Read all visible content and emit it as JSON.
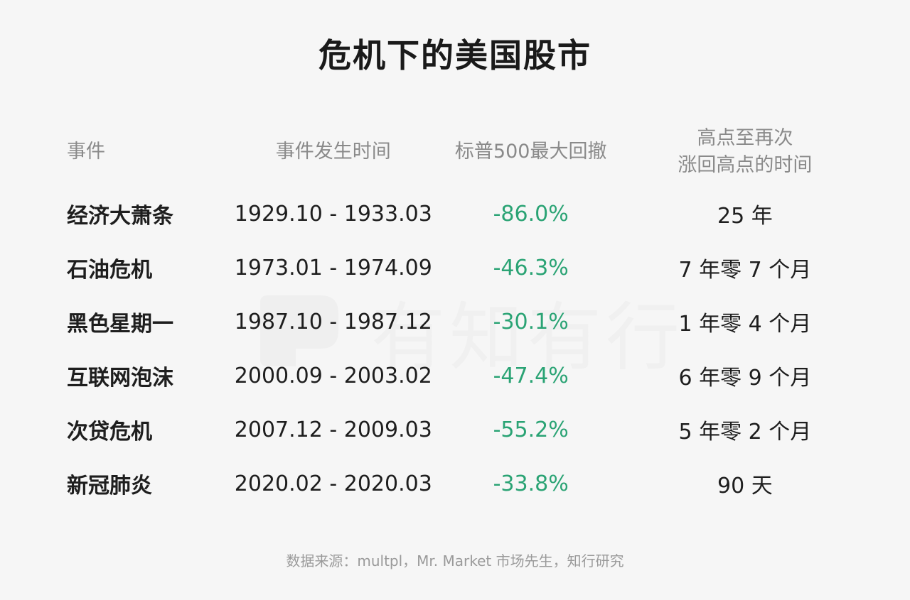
{
  "title": "危机下的美国股市",
  "watermark": "有知有行",
  "table": {
    "headers": {
      "event": "事件",
      "time": "事件发生时间",
      "drawdown": "标普500最大回撤",
      "recovery_line1": "高点至再次",
      "recovery_line2": "涨回高点的时间"
    },
    "rows": [
      {
        "event": "经济大萧条",
        "time": "1929.10 - 1933.03",
        "drawdown": "-86.0%",
        "recovery": "25 年"
      },
      {
        "event": "石油危机",
        "time": "1973.01 - 1974.09",
        "drawdown": "-46.3%",
        "recovery": "7 年零 7 个月"
      },
      {
        "event": "黑色星期一",
        "time": "1987.10 - 1987.12",
        "drawdown": "-30.1%",
        "recovery": "1 年零 4 个月"
      },
      {
        "event": "互联网泡沫",
        "time": "2000.09 - 2003.02",
        "drawdown": "-47.4%",
        "recovery": "6 年零 9 个月"
      },
      {
        "event": "次贷危机",
        "time": "2007.12 - 2009.03",
        "drawdown": "-55.2%",
        "recovery": "5 年零 2 个月"
      },
      {
        "event": "新冠肺炎",
        "time": "2020.02 - 2020.03",
        "drawdown": "-33.8%",
        "recovery": "90 天"
      }
    ]
  },
  "source": "数据来源：multpl，Mr. Market 市场先生，知行研究",
  "colors": {
    "drawdown": "#2aa374",
    "background": "#f6f6f6"
  }
}
